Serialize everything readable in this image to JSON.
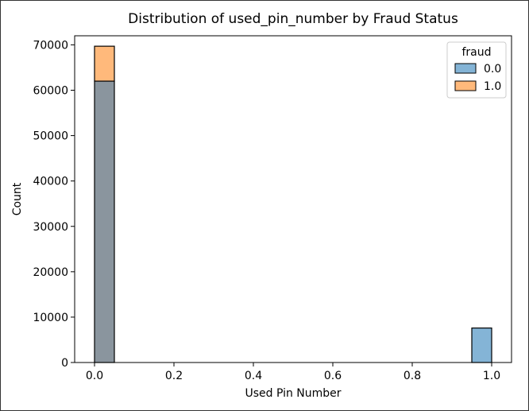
{
  "chart_data": {
    "type": "bar",
    "title": "Distribution of used_pin_number by Fraud Status",
    "xlabel": "Used Pin Number",
    "ylabel": "Count",
    "xlim": [
      -0.05,
      1.05
    ],
    "ylim": [
      0,
      72000
    ],
    "xticks": [
      0.0,
      0.2,
      0.4,
      0.6,
      0.8,
      1.0
    ],
    "xtick_labels": [
      "0.0",
      "0.2",
      "0.4",
      "0.6",
      "0.8",
      "1.0"
    ],
    "yticks": [
      0,
      10000,
      20000,
      30000,
      40000,
      50000,
      60000,
      70000
    ],
    "ytick_labels": [
      "0",
      "10000",
      "20000",
      "30000",
      "40000",
      "50000",
      "60000",
      "70000"
    ],
    "bin_width": 0.05,
    "legend": {
      "title": "fraud",
      "placement": "top-right"
    },
    "series": [
      {
        "name": "0.0",
        "color": "#1f77b4",
        "bins": [
          {
            "x0": 0.0,
            "x1": 0.05,
            "value": 62000
          },
          {
            "x0": 0.95,
            "x1": 1.0,
            "value": 7600
          }
        ]
      },
      {
        "name": "1.0",
        "color": "#ff7f0e",
        "bins": [
          {
            "x0": 0.0,
            "x1": 0.05,
            "value": 69700
          },
          {
            "x0": 0.95,
            "x1": 1.0,
            "value": 0
          }
        ]
      }
    ],
    "overlap_color": "#8a959e",
    "grid": false
  }
}
